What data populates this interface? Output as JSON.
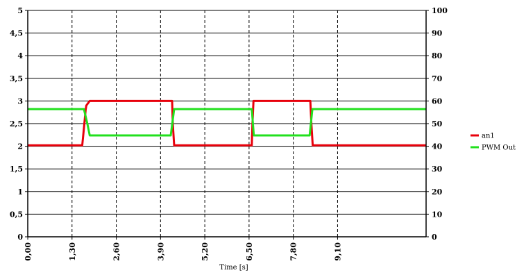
{
  "chart_data": {
    "type": "line",
    "xlabel": "Time [s]",
    "x_range": [
      0,
      11.7
    ],
    "x_ticks": [
      0.0,
      1.3,
      2.6,
      3.9,
      5.2,
      6.5,
      7.8,
      9.1
    ],
    "x_tick_labels": [
      "0,00",
      "1,30",
      "2,60",
      "3,90",
      "5,20",
      "6,50",
      "7,80",
      "9,10"
    ],
    "y_left_range": [
      0,
      5
    ],
    "y_left_ticks": [
      0,
      0.5,
      1,
      1.5,
      2,
      2.5,
      3,
      3.5,
      4,
      4.5,
      5
    ],
    "y_left_tick_labels": [
      "0",
      "0,5",
      "1",
      "1,5",
      "2",
      "2,5",
      "3",
      "3,5",
      "4",
      "4,5",
      "5"
    ],
    "y_right_range": [
      0,
      100
    ],
    "y_right_ticks": [
      0,
      10,
      20,
      30,
      40,
      50,
      60,
      70,
      80,
      90,
      100
    ],
    "y_right_tick_labels": [
      "0",
      "10",
      "20",
      "30",
      "40",
      "50",
      "60",
      "70",
      "80",
      "90",
      "100"
    ],
    "grid": {
      "horizontal": "solid",
      "vertical": "dashed"
    },
    "legend_position": "right",
    "series": [
      {
        "name": "an1",
        "color": "#e8000b",
        "axis": "left",
        "x": [
          0.0,
          1.6,
          1.65,
          1.7,
          1.72,
          1.78,
          1.82,
          1.9,
          4.24,
          4.26,
          4.3,
          6.58,
          6.6,
          6.63,
          8.3,
          8.33,
          8.37,
          11.7
        ],
        "y": [
          2.02,
          2.02,
          2.4,
          2.8,
          2.9,
          2.96,
          3.0,
          3.0,
          3.0,
          2.5,
          2.02,
          2.02,
          2.5,
          3.0,
          3.0,
          2.5,
          2.02,
          2.02
        ]
      },
      {
        "name": "PWM Out",
        "color": "#22e01e",
        "axis": "right",
        "x": [
          0.0,
          1.65,
          1.75,
          1.82,
          4.2,
          4.3,
          6.58,
          6.64,
          8.28,
          8.36,
          11.7
        ],
        "y": [
          56.4,
          56.4,
          50,
          44.8,
          44.8,
          56.4,
          56.4,
          44.8,
          44.8,
          56.4,
          56.4
        ]
      }
    ]
  }
}
